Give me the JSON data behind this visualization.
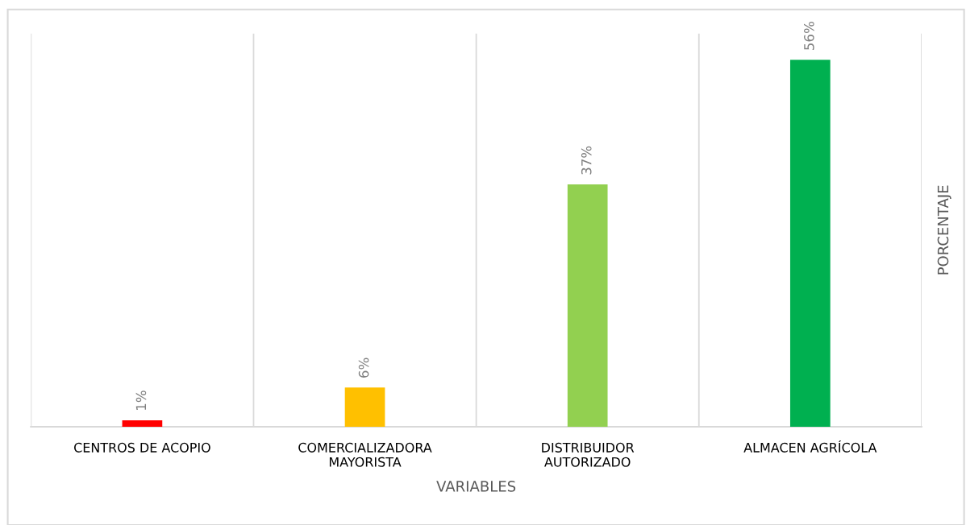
{
  "chart_data": {
    "type": "bar",
    "xlabel": "VARIABLES",
    "ylabel": "PORCENTAJE",
    "categories": [
      "CENTROS DE ACOPIO",
      "COMERCIALIZADORA\nMAYORISTA",
      "DISTRIBUIDOR\nAUTORIZADO",
      "ALMACEN AGRÍCOLA"
    ],
    "values": [
      1,
      6,
      37,
      56
    ],
    "colors": [
      "#ff0000",
      "#ffc000",
      "#92d050",
      "#00b050"
    ],
    "value_labels": [
      "1%",
      "6%",
      "37%",
      "56%"
    ],
    "ylim": [
      0,
      60
    ],
    "tick_labels": "x",
    "grid": "x",
    "legend": false
  }
}
